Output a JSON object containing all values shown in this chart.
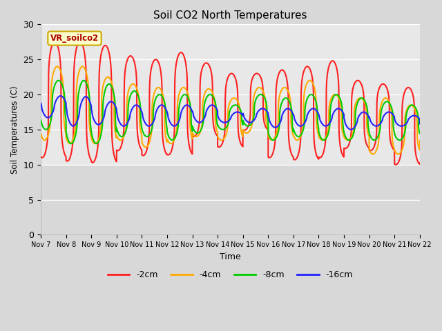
{
  "title": "Soil CO2 North Temperatures",
  "xlabel": "Time",
  "ylabel": "Soil Temperatures (C)",
  "ylim": [
    0,
    30
  ],
  "yticks": [
    0,
    5,
    10,
    15,
    20,
    25,
    30
  ],
  "outer_bg": "#d8d8d8",
  "plot_bg_upper": "#e8e8e8",
  "plot_bg_lower": "#d8d8d8",
  "grid_color": "#ffffff",
  "line_colors": {
    "-2cm": "#ff2020",
    "-4cm": "#ffaa00",
    "-8cm": "#00cc00",
    "-16cm": "#2222ff"
  },
  "legend_label": "VR_soilco2",
  "legend_label_color": "#aa0000",
  "legend_bg": "#ffffcc",
  "legend_edge": "#ccaa00",
  "n_days": 15,
  "x_tick_labels": [
    "Nov 7",
    "Nov 8",
    "Nov 9",
    "Nov 10",
    "Nov 11",
    "Nov 12",
    "Nov 13",
    "Nov 14",
    "Nov 15",
    "Nov 16",
    "Nov 17",
    "Nov 18",
    "Nov 19",
    "Nov 20",
    "Nov 21",
    "Nov 22"
  ],
  "series": {
    "-2cm": {
      "daily_peaks": [
        27.5,
        27.5,
        27.0,
        25.5,
        25.0,
        26.0,
        24.5,
        23.0,
        23.0,
        23.5,
        24.0,
        24.8,
        22.0,
        21.5,
        21.0,
        20.5
      ],
      "daily_troughs": [
        11.0,
        10.5,
        10.3,
        12.0,
        11.3,
        11.4,
        14.0,
        12.5,
        14.9,
        11.0,
        10.7,
        11.0,
        12.3,
        12.0,
        10.0,
        10.2
      ],
      "peak_phase": 0.55,
      "sharpness": 4.0
    },
    "-4cm": {
      "daily_peaks": [
        24.0,
        24.0,
        22.5,
        21.5,
        21.0,
        21.0,
        20.8,
        19.5,
        21.0,
        21.0,
        22.0,
        20.0,
        19.5,
        19.5,
        18.5,
        18.5
      ],
      "daily_troughs": [
        13.5,
        13.0,
        13.0,
        13.5,
        12.5,
        13.0,
        14.0,
        13.5,
        14.5,
        13.5,
        13.5,
        13.5,
        13.5,
        11.5,
        11.5,
        13.0
      ],
      "peak_phase": 0.65,
      "sharpness": 3.0
    },
    "-8cm": {
      "daily_peaks": [
        22.0,
        22.0,
        21.5,
        20.5,
        20.0,
        20.0,
        20.0,
        18.5,
        20.0,
        19.5,
        20.0,
        20.0,
        19.5,
        19.0,
        18.5,
        19.0
      ],
      "daily_troughs": [
        15.0,
        13.0,
        13.0,
        14.0,
        14.0,
        13.5,
        14.5,
        15.0,
        15.5,
        13.5,
        14.0,
        13.5,
        13.5,
        13.5,
        13.5,
        13.5
      ],
      "peak_phase": 0.7,
      "sharpness": 2.5
    },
    "-16cm": {
      "daily_peaks": [
        19.8,
        19.7,
        19.0,
        18.5,
        18.5,
        18.5,
        18.5,
        17.5,
        18.0,
        18.0,
        18.0,
        18.0,
        17.5,
        17.5,
        17.0,
        16.0
      ],
      "daily_troughs": [
        16.7,
        15.5,
        15.7,
        15.5,
        15.5,
        15.5,
        16.0,
        16.0,
        16.0,
        15.3,
        15.5,
        15.5,
        15.0,
        15.5,
        15.5,
        15.5
      ],
      "peak_phase": 0.78,
      "sharpness": 1.5
    }
  }
}
